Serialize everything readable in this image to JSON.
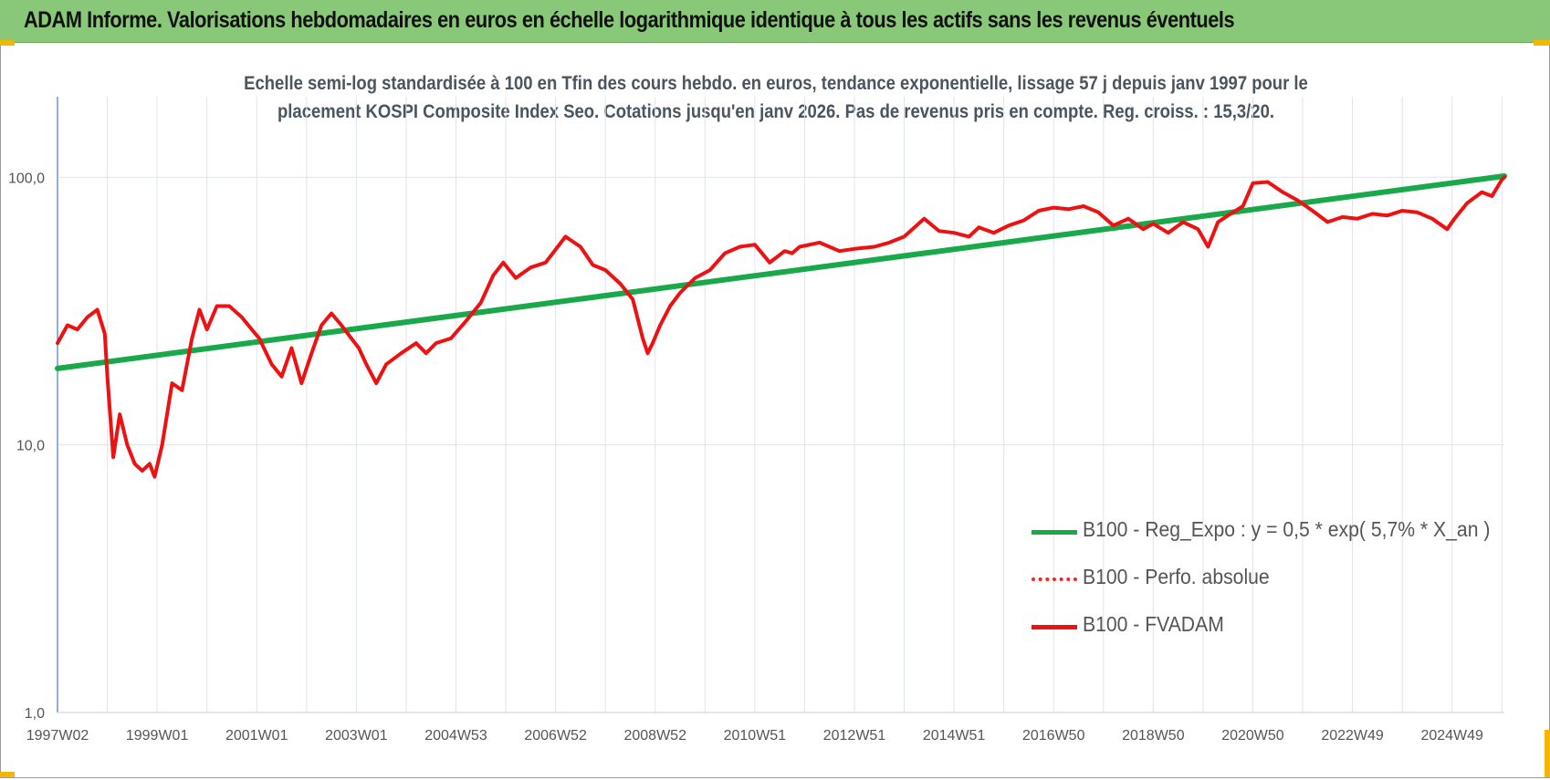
{
  "header": {
    "title": "ADAM Informe. Valorisations hebdomadaires en euros en échelle logarithmique identique à tous les actifs sans les revenus éventuels"
  },
  "chart_data": {
    "type": "line",
    "subtitle_lines": [
      "Echelle semi-log standardisée à 100 en Tfin des cours hebdo. en euros, tendance exponentielle, lissage 57 j depuis janv 1997 pour le",
      "placement KOSPI Composite Index Seo. Cotations jusqu'en janv 2026. Pas de revenus pris en compte. Reg. croiss. : 15,3/20."
    ],
    "y_scale": "log",
    "ylim": [
      1,
      200
    ],
    "y_ticks": [
      {
        "value": 1,
        "label": "1,0"
      },
      {
        "value": 10,
        "label": "10,0"
      },
      {
        "value": 100,
        "label": "100,0"
      }
    ],
    "x_ticks": [
      {
        "year": 1997.0,
        "label": "1997W02"
      },
      {
        "year": 1999.0,
        "label": "1999W01"
      },
      {
        "year": 2001.0,
        "label": "2001W01"
      },
      {
        "year": 2003.0,
        "label": "2003W01"
      },
      {
        "year": 2005.0,
        "label": "2004W53"
      },
      {
        "year": 2007.0,
        "label": "2006W52"
      },
      {
        "year": 2009.0,
        "label": "2008W52"
      },
      {
        "year": 2011.0,
        "label": "2010W51"
      },
      {
        "year": 2013.0,
        "label": "2012W51"
      },
      {
        "year": 2015.0,
        "label": "2014W51"
      },
      {
        "year": 2017.0,
        "label": "2016W50"
      },
      {
        "year": 2019.0,
        "label": "2018W50"
      },
      {
        "year": 2021.0,
        "label": "2020W50"
      },
      {
        "year": 2023.0,
        "label": "2022W49"
      },
      {
        "year": 2025.0,
        "label": "2024W49"
      }
    ],
    "xlim": [
      1997.0,
      2026.05
    ],
    "grid": true,
    "legend_position": "bottom-right",
    "series": [
      {
        "name": "B100 - Reg_Expo : y = 0,5 * exp( 5,7% *  X_an )",
        "color": "#19a84a",
        "style": "solid",
        "x": [
          1997.0,
          2026.05
        ],
        "values": [
          19.3,
          101
        ]
      },
      {
        "name": "B100 - Perfo. absolue",
        "color": "#ff2020",
        "style": "dotted",
        "x": [],
        "values": []
      },
      {
        "name": "B100 - FVADAM",
        "color": "#ee1111",
        "style": "solid",
        "x": [
          1997.0,
          1997.2,
          1997.4,
          1997.6,
          1997.8,
          1997.95,
          1998.0,
          1998.12,
          1998.25,
          1998.4,
          1998.55,
          1998.7,
          1998.85,
          1998.95,
          1999.1,
          1999.3,
          1999.5,
          1999.7,
          1999.85,
          2000.0,
          2000.2,
          2000.45,
          2000.7,
          2000.9,
          2001.05,
          2001.3,
          2001.5,
          2001.7,
          2001.9,
          2002.1,
          2002.3,
          2002.5,
          2002.7,
          2002.9,
          2003.05,
          2003.2,
          2003.4,
          2003.6,
          2003.9,
          2004.2,
          2004.4,
          2004.6,
          2004.9,
          2005.2,
          2005.5,
          2005.75,
          2005.95,
          2006.2,
          2006.5,
          2006.8,
          2007.2,
          2007.5,
          2007.75,
          2008.0,
          2008.3,
          2008.55,
          2008.75,
          2008.85,
          2008.95,
          2009.1,
          2009.3,
          2009.5,
          2009.8,
          2010.1,
          2010.4,
          2010.7,
          2011.0,
          2011.3,
          2011.6,
          2011.75,
          2011.9,
          2012.3,
          2012.7,
          2013.0,
          2013.4,
          2013.7,
          2014.0,
          2014.4,
          2014.7,
          2015.0,
          2015.3,
          2015.5,
          2015.8,
          2016.1,
          2016.4,
          2016.7,
          2017.0,
          2017.3,
          2017.6,
          2017.9,
          2018.2,
          2018.5,
          2018.8,
          2019.0,
          2019.3,
          2019.6,
          2019.9,
          2020.1,
          2020.2,
          2020.3,
          2020.5,
          2020.8,
          2021.0,
          2021.3,
          2021.6,
          2021.9,
          2022.2,
          2022.5,
          2022.8,
          2023.1,
          2023.4,
          2023.7,
          2024.0,
          2024.3,
          2024.6,
          2024.9,
          2025.05,
          2025.3,
          2025.6,
          2025.8,
          2026.0,
          2026.05
        ],
        "values": [
          24,
          28,
          27,
          30,
          32,
          26,
          18,
          9,
          13,
          10,
          8.5,
          8,
          8.5,
          7.6,
          10,
          17,
          16,
          25,
          32,
          27,
          33,
          33,
          30,
          27,
          25,
          20,
          18,
          23,
          17,
          22,
          28,
          31,
          28,
          25,
          23,
          20,
          17,
          20,
          22,
          24,
          22,
          24,
          25,
          29,
          34,
          43,
          48,
          42,
          46,
          48,
          60,
          55,
          47,
          45,
          40,
          35,
          25,
          22,
          24,
          28,
          33,
          37,
          42,
          45,
          52,
          55,
          56,
          48,
          53,
          52,
          55,
          57,
          53,
          54,
          55,
          57,
          60,
          70,
          63,
          62,
          60,
          65,
          62,
          66,
          69,
          75,
          77,
          76,
          78,
          74,
          66,
          70,
          64,
          67,
          62,
          68,
          64,
          55,
          61,
          68,
          72,
          78,
          95,
          96,
          88,
          82,
          75,
          68,
          71,
          70,
          73,
          72,
          75,
          74,
          70,
          64,
          70,
          80,
          88,
          85,
          98,
          100
        ]
      }
    ]
  }
}
